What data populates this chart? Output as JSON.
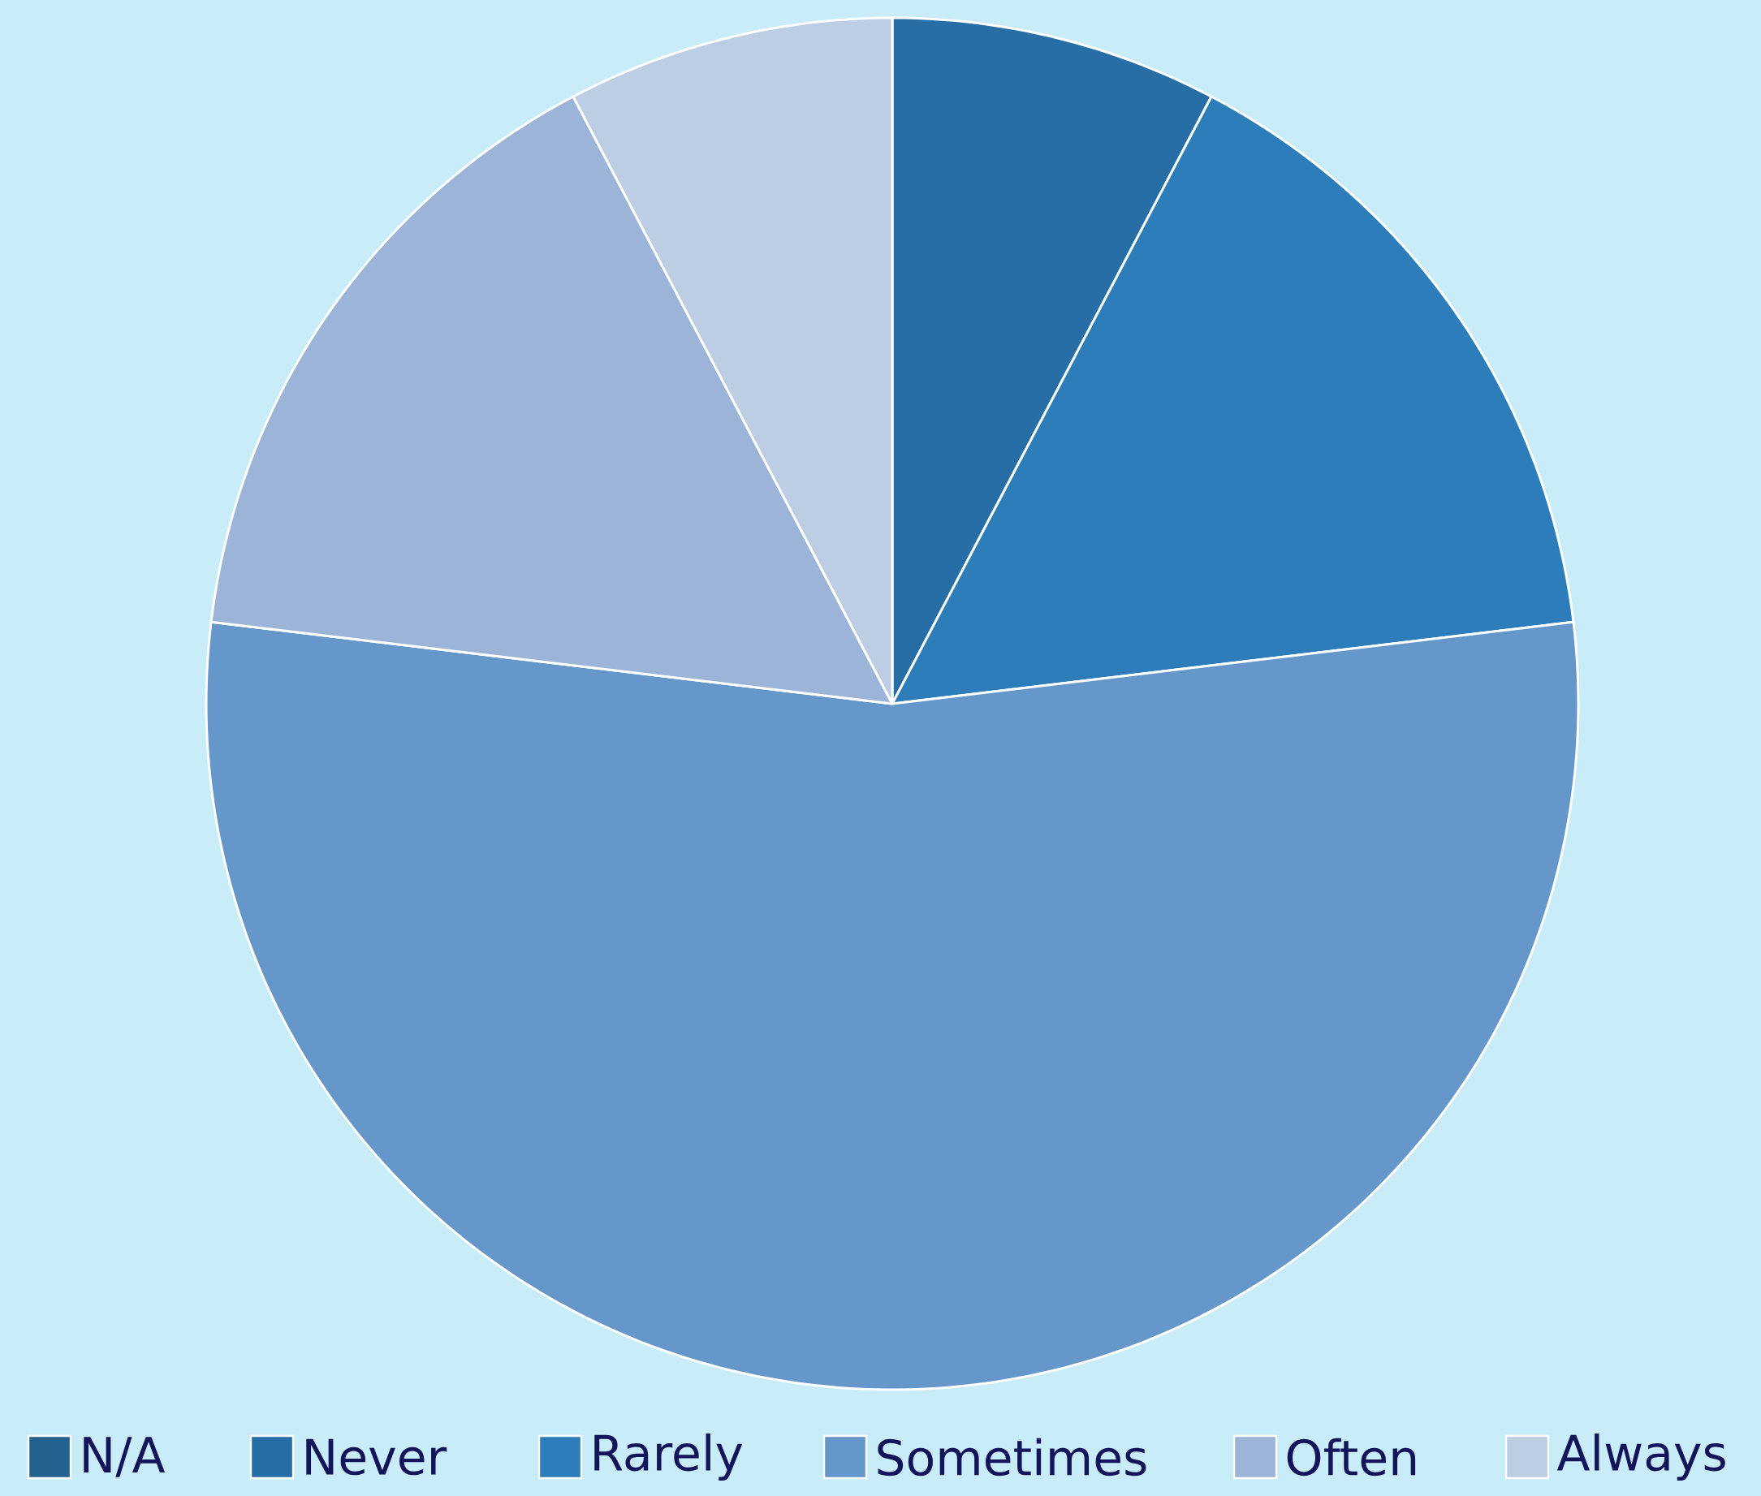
{
  "chart_data": {
    "type": "pie",
    "categories": [
      "N/A",
      "Never",
      "Rarely",
      "Sometimes",
      "Often",
      "Always"
    ],
    "values": [
      0,
      7.7,
      15.4,
      53.8,
      15.4,
      7.7
    ],
    "colors": [
      "#23618e",
      "#286ea6",
      "#2c7db9",
      "#6597ca",
      "#9bb4d7",
      "#bdcde3"
    ],
    "legend": "bottom"
  }
}
